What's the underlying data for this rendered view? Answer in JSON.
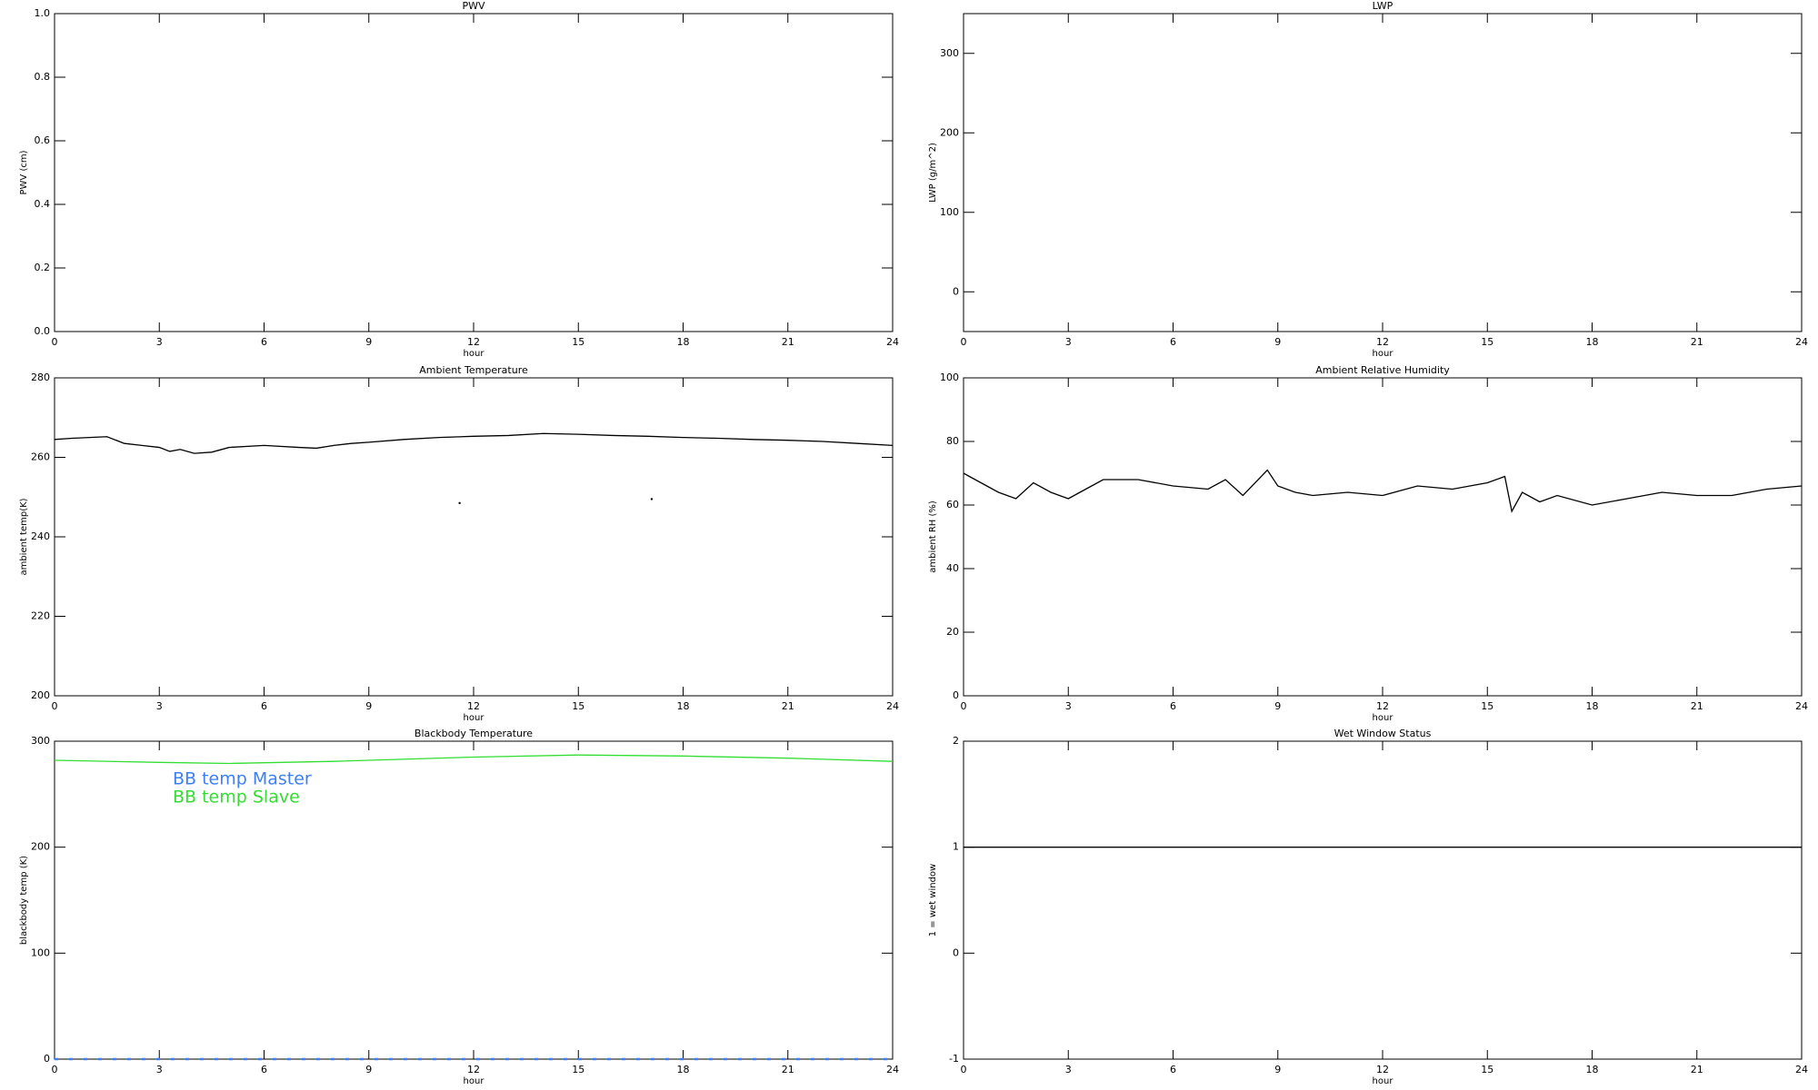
{
  "chart_data": [
    {
      "type": "line",
      "title": "PWV",
      "xlabel": "hour",
      "ylabel": "PWV (cm)",
      "xlim": [
        0,
        24
      ],
      "xticks": [
        0,
        3,
        6,
        9,
        12,
        15,
        18,
        21,
        24
      ],
      "ylim": [
        0,
        1
      ],
      "yticks": [
        {
          "value": 0,
          "label": "0.0"
        },
        0.2,
        0.4,
        0.6,
        0.8,
        {
          "value": 1,
          "label": "1.0"
        }
      ],
      "series": []
    },
    {
      "type": "line",
      "title": "LWP",
      "xlabel": "hour",
      "ylabel": "LWP (g/m^2)",
      "xlim": [
        0,
        24
      ],
      "xticks": [
        0,
        3,
        6,
        9,
        12,
        15,
        18,
        21,
        24
      ],
      "ylim": [
        -50,
        350
      ],
      "yticks": [
        0,
        100,
        200,
        300
      ],
      "series": []
    },
    {
      "type": "line",
      "title": "Ambient Temperature",
      "xlabel": "hour",
      "ylabel": "ambient temp(K)",
      "xlim": [
        0,
        24
      ],
      "xticks": [
        0,
        3,
        6,
        9,
        12,
        15,
        18,
        21,
        24
      ],
      "ylim": [
        200,
        280
      ],
      "yticks": [
        200,
        220,
        240,
        260,
        280
      ],
      "series": [
        {
          "color": "#000000",
          "style": "line",
          "x": [
            0,
            0.5,
            1,
            1.5,
            2,
            2.5,
            3,
            3.3,
            3.6,
            4,
            4.5,
            5,
            6,
            7,
            7.5,
            8,
            8.5,
            9,
            10,
            11,
            12,
            13,
            14,
            15,
            16,
            17,
            18,
            19,
            20,
            21,
            22,
            23,
            24
          ],
          "values": [
            264.5,
            264.8,
            265,
            265.2,
            263.5,
            263,
            262.5,
            261.5,
            262,
            261,
            261.3,
            262.5,
            263,
            262.5,
            262.3,
            263,
            263.5,
            263.8,
            264.5,
            265,
            265.3,
            265.5,
            266,
            265.8,
            265.5,
            265.3,
            265,
            264.8,
            264.5,
            264.3,
            264,
            263.5,
            263
          ]
        },
        {
          "color": "#000000",
          "style": "points",
          "x": [
            11.6,
            17.1
          ],
          "values": [
            248.5,
            249.5
          ]
        }
      ]
    },
    {
      "type": "line",
      "title": "Ambient Relative Humidity",
      "xlabel": "hour",
      "ylabel": "ambient RH (%)",
      "xlim": [
        0,
        24
      ],
      "xticks": [
        0,
        3,
        6,
        9,
        12,
        15,
        18,
        21,
        24
      ],
      "ylim": [
        0,
        100
      ],
      "yticks": [
        0,
        20,
        40,
        60,
        80,
        100
      ],
      "series": [
        {
          "color": "#000000",
          "style": "line",
          "x": [
            0,
            0.5,
            1,
            1.5,
            2,
            2.5,
            3,
            3.5,
            4,
            5,
            6,
            7,
            7.5,
            8,
            8.7,
            9,
            9.5,
            10,
            11,
            12,
            13,
            14,
            15,
            15.5,
            15.7,
            16,
            16.5,
            17,
            18,
            19,
            20,
            21,
            22,
            23,
            24
          ],
          "values": [
            70,
            67,
            64,
            62,
            67,
            64,
            62,
            65,
            68,
            68,
            66,
            65,
            68,
            63,
            71,
            66,
            64,
            63,
            64,
            63,
            66,
            65,
            67,
            69,
            58,
            64,
            61,
            63,
            60,
            62,
            64,
            63,
            63,
            65,
            66
          ]
        }
      ]
    },
    {
      "type": "line",
      "title": "Blackbody Temperature",
      "xlabel": "hour",
      "ylabel": "blackbody temp (K)",
      "xlim": [
        0,
        24
      ],
      "xticks": [
        0,
        3,
        6,
        9,
        12,
        15,
        18,
        21,
        24
      ],
      "ylim": [
        0,
        300
      ],
      "yticks": [
        0,
        100,
        200,
        300
      ],
      "legend": "upper left",
      "series": [
        {
          "name": "BB temp Master",
          "color": "#3d7ff5",
          "style": "dashed",
          "x": [
            0,
            24
          ],
          "values": [
            0,
            0
          ]
        },
        {
          "name": "BB temp Slave",
          "color": "#33dd33",
          "style": "line",
          "x": [
            0,
            3,
            5,
            8,
            12,
            15,
            18,
            21,
            24
          ],
          "values": [
            282,
            280,
            279,
            281,
            285,
            287,
            286,
            284,
            281
          ]
        }
      ]
    },
    {
      "type": "line",
      "title": "Wet Window Status",
      "xlabel": "hour",
      "ylabel": "1 = wet window",
      "xlim": [
        0,
        24
      ],
      "xticks": [
        0,
        3,
        6,
        9,
        12,
        15,
        18,
        21,
        24
      ],
      "ylim": [
        -1,
        2
      ],
      "yticks": [
        -1,
        0,
        1,
        2
      ],
      "series": [
        {
          "color": "#000000",
          "style": "line",
          "x": [
            0,
            24
          ],
          "values": [
            1,
            1
          ]
        }
      ]
    }
  ]
}
